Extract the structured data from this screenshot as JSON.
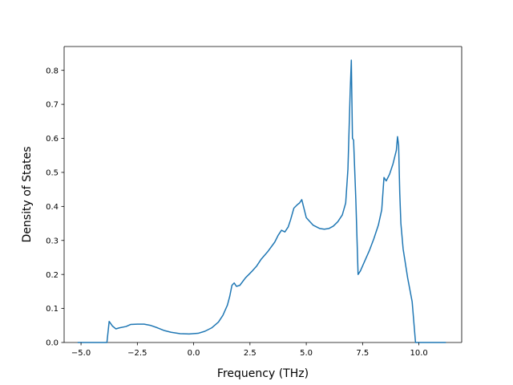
{
  "chart_data": {
    "type": "line",
    "xlabel": "Frequency (THz)",
    "ylabel": "Density of States",
    "xlim": [
      -5.75,
      11.9
    ],
    "ylim": [
      0,
      0.87
    ],
    "grid": false,
    "xticks": [
      -5.0,
      -2.5,
      0.0,
      2.5,
      5.0,
      7.5,
      10.0
    ],
    "xtick_labels": [
      "−5.0",
      "−2.5",
      "0.0",
      "2.5",
      "5.0",
      "7.5",
      "10.0"
    ],
    "yticks": [
      0.0,
      0.1,
      0.2,
      0.3,
      0.4,
      0.5,
      0.6,
      0.7,
      0.8
    ],
    "ytick_labels": [
      "0.0",
      "0.1",
      "0.2",
      "0.3",
      "0.4",
      "0.5",
      "0.6",
      "0.7",
      "0.8"
    ],
    "line_color": "#1f77b4",
    "series": [
      {
        "x": [
          -5.15,
          -4.5,
          -4.0,
          -3.85,
          -3.75,
          -3.6,
          -3.45,
          -3.3,
          -3.0,
          -2.8,
          -2.5,
          -2.2,
          -1.9,
          -1.6,
          -1.3,
          -1.0,
          -0.6,
          -0.2,
          0.2,
          0.5,
          0.8,
          1.1,
          1.3,
          1.5,
          1.6,
          1.7,
          1.8,
          1.9,
          2.05,
          2.3,
          2.6,
          2.8,
          3.0,
          3.3,
          3.6,
          3.75,
          3.9,
          4.05,
          4.2,
          4.3,
          4.45,
          4.6,
          4.7,
          4.8,
          5.0,
          5.3,
          5.6,
          5.8,
          6.0,
          6.2,
          6.4,
          6.6,
          6.75,
          6.85,
          6.95,
          7.0,
          7.05,
          7.1,
          7.2,
          7.3,
          7.4,
          7.6,
          7.8,
          8.0,
          8.2,
          8.35,
          8.45,
          8.55,
          8.7,
          8.85,
          9.0,
          9.05,
          9.1,
          9.15,
          9.2,
          9.3,
          9.5,
          9.7,
          9.85,
          10.2,
          10.8,
          11.2
        ],
        "y": [
          0.0,
          0.0,
          0.0,
          0.0,
          0.062,
          0.048,
          0.04,
          0.043,
          0.047,
          0.053,
          0.054,
          0.054,
          0.05,
          0.043,
          0.035,
          0.03,
          0.026,
          0.025,
          0.027,
          0.033,
          0.043,
          0.06,
          0.08,
          0.11,
          0.135,
          0.168,
          0.175,
          0.165,
          0.168,
          0.19,
          0.21,
          0.225,
          0.245,
          0.268,
          0.295,
          0.315,
          0.33,
          0.325,
          0.34,
          0.36,
          0.395,
          0.405,
          0.41,
          0.42,
          0.367,
          0.345,
          0.335,
          0.333,
          0.335,
          0.342,
          0.355,
          0.375,
          0.41,
          0.51,
          0.74,
          0.83,
          0.6,
          0.595,
          0.42,
          0.2,
          0.21,
          0.24,
          0.27,
          0.305,
          0.345,
          0.39,
          0.485,
          0.475,
          0.495,
          0.525,
          0.565,
          0.605,
          0.58,
          0.44,
          0.35,
          0.275,
          0.19,
          0.12,
          0.0,
          0.0,
          0.0,
          0.0
        ]
      }
    ]
  }
}
